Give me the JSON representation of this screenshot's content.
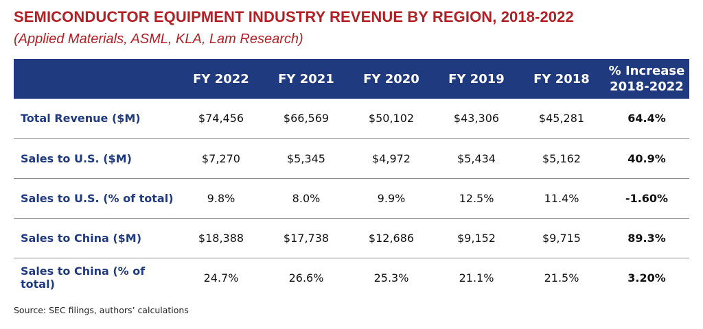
{
  "title": "SEMICONDUCTOR EQUIPMENT INDUSTRY REVENUE BY REGION, 2018-2022",
  "subtitle": "(Applied Materials, ASML, KLA, Lam Research)",
  "colors": {
    "title": "#b31f24",
    "header_bg": "#203a80",
    "row_label": "#203a80"
  },
  "source": "Source: SEC filings, authors’ calculations",
  "chart_data": {
    "type": "table",
    "title": "SEMICONDUCTOR EQUIPMENT INDUSTRY REVENUE BY REGION, 2018-2022",
    "subtitle": "(Applied Materials, ASML, KLA, Lam Research)",
    "columns": [
      "",
      "FY 2022",
      "FY 2021",
      "FY 2020",
      "FY 2019",
      "FY 2018",
      "% Increase 2018-2022"
    ],
    "header_lines": {
      "pct_line1": "% Increase",
      "pct_line2": "2018-2022"
    },
    "rows": [
      {
        "label": "Total Revenue ($M)",
        "cells": [
          "$74,456",
          "$66,569",
          "$50,102",
          "$43,306",
          "$45,281"
        ],
        "pct": "64.4%"
      },
      {
        "label": "Sales to U.S. ($M)",
        "cells": [
          "$7,270",
          "$5,345",
          "$4,972",
          "$5,434",
          "$5,162"
        ],
        "pct": "40.9%"
      },
      {
        "label": "Sales to U.S. (% of total)",
        "cells": [
          "9.8%",
          "8.0%",
          "9.9%",
          "12.5%",
          "11.4%"
        ],
        "pct": "-1.60%"
      },
      {
        "label": "Sales to China ($M)",
        "cells": [
          "$18,388",
          "$17,738",
          "$12,686",
          "$9,152",
          "$9,715"
        ],
        "pct": "89.3%"
      },
      {
        "label": "Sales to China (% of total)",
        "cells": [
          "24.7%",
          "26.6%",
          "25.3%",
          "21.1%",
          "21.5%"
        ],
        "pct": "3.20%"
      }
    ]
  }
}
